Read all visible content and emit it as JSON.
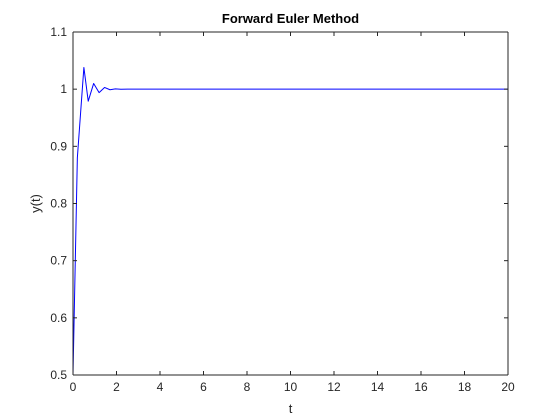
{
  "chart_data": {
    "type": "line",
    "title": "Forward Euler Method",
    "xlabel": "t",
    "ylabel": "y(t)",
    "xlim": [
      0,
      20
    ],
    "ylim": [
      0.5,
      1.1
    ],
    "x_ticks": [
      "0",
      "2",
      "4",
      "6",
      "8",
      "10",
      "12",
      "14",
      "16",
      "18",
      "20"
    ],
    "y_ticks": [
      "0.5",
      "0.6",
      "0.7",
      "0.8",
      "0.9",
      "1",
      "1.1"
    ],
    "grid": false,
    "legend": "none",
    "line_color": "#0000ff",
    "series": [
      {
        "x": [
          0,
          0.2,
          0.5,
          0.7,
          0.95,
          1.2,
          1.45,
          1.7,
          1.95,
          2.2,
          2.5,
          3,
          20
        ],
        "y": [
          0.5,
          0.88,
          1.038,
          0.979,
          1.01,
          0.994,
          1.003,
          0.999,
          1.0005,
          0.9998,
          1.0,
          1.0,
          1.0
        ]
      }
    ]
  }
}
